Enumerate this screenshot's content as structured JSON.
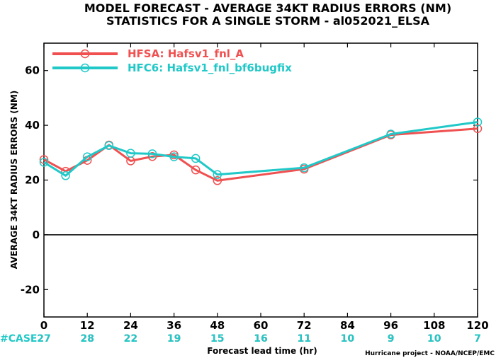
{
  "chart_data": {
    "type": "line",
    "title": "MODEL FORECAST - AVERAGE 34KT RADIUS ERRORS (NM)",
    "subtitle": "STATISTICS FOR A SINGLE STORM - al052021_ELSA",
    "xlabel": "Forecast lead time (hr)",
    "ylabel": "AVERAGE 34KT RADIUS ERRORS (NM)",
    "xlim": [
      0,
      120
    ],
    "ylim": [
      -30,
      70
    ],
    "x_ticks": [
      0,
      12,
      24,
      36,
      48,
      60,
      72,
      84,
      96,
      108,
      120
    ],
    "x_tick_labels": [
      "0",
      "12",
      "24",
      "36",
      "48",
      "60",
      "72",
      "84",
      "96",
      "108",
      "120"
    ],
    "y_ticks": [
      -20,
      0,
      20,
      40,
      60
    ],
    "y_tick_labels": [
      "-20",
      "0",
      "20",
      "40",
      "60"
    ],
    "zero_line": true,
    "grid": false,
    "legend_position": "top-left",
    "series": [
      {
        "name": "HFSA: Hafsv1_fnl_A",
        "color": "#f05050",
        "points": [
          [
            0,
            27.5
          ],
          [
            6,
            23.2
          ],
          [
            12,
            27.2
          ],
          [
            18,
            32.8
          ],
          [
            24,
            27.0
          ],
          [
            30,
            28.6
          ],
          [
            36,
            29.2
          ],
          [
            42,
            23.7
          ],
          [
            48,
            19.8
          ],
          [
            72,
            24.0
          ],
          [
            96,
            36.5
          ],
          [
            120,
            38.8
          ]
        ]
      },
      {
        "name": "HFC6: Hafsv1_fnl_bf6bugfix",
        "color": "#20c8c8",
        "points": [
          [
            0,
            26.5
          ],
          [
            6,
            21.6
          ],
          [
            12,
            28.5
          ],
          [
            18,
            32.6
          ],
          [
            24,
            29.8
          ],
          [
            30,
            29.6
          ],
          [
            36,
            28.5
          ],
          [
            42,
            27.9
          ],
          [
            48,
            22.0
          ],
          [
            72,
            24.5
          ],
          [
            96,
            36.8
          ],
          [
            120,
            41.2
          ]
        ]
      }
    ],
    "case_label": "#CASE",
    "case_counts": {
      "x": [
        0,
        12,
        24,
        36,
        48,
        60,
        72,
        84,
        96,
        108,
        120
      ],
      "series_a": [
        "27",
        "28",
        "22",
        "19",
        "15",
        "16",
        "11",
        "10",
        "9",
        "10",
        "7"
      ],
      "series_a_color": "#f05050",
      "series_b": [
        "27",
        "28",
        "22",
        "19",
        "15",
        "16",
        "11",
        "10",
        "9",
        "10",
        "7"
      ],
      "series_b_color": "#20c8c8"
    },
    "credit": "Hurricane project - NOAA/NCEP/EMC"
  }
}
